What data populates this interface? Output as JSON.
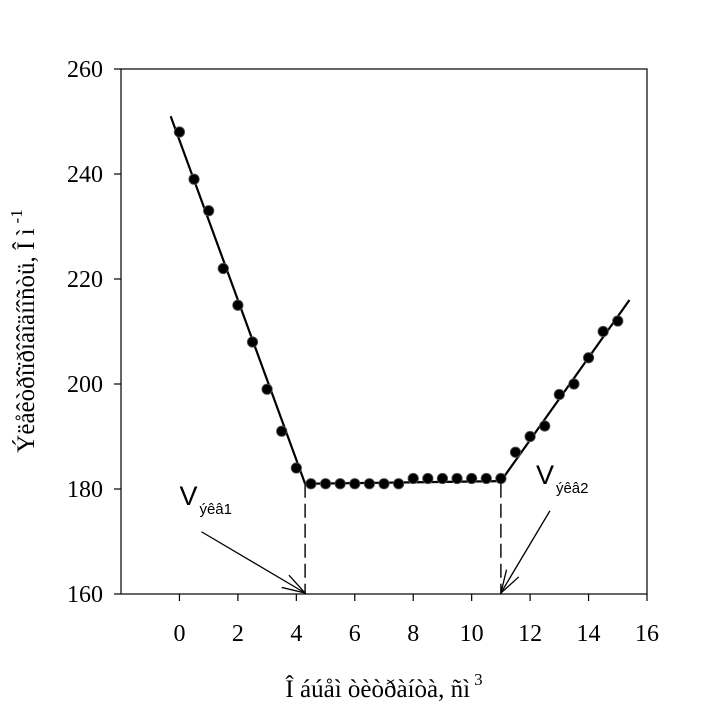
{
  "chart_data": {
    "type": "scatter",
    "title": "",
    "xlabel": "Î áúåì  òèòðàíòà, ñì",
    "xlabel_sup": "3",
    "ylabel": "Ýëåêòðîïðîâîäíîñòü, Î ì",
    "ylabel_sup": "-1",
    "xlim": [
      -2,
      16
    ],
    "ylim": [
      160,
      260
    ],
    "xticks": [
      0,
      2,
      4,
      6,
      8,
      10,
      12,
      14,
      16
    ],
    "yticks": [
      160,
      180,
      200,
      220,
      240,
      260
    ],
    "grid": false,
    "series": [
      {
        "x": [
          0,
          0.5,
          1,
          1.5,
          2,
          2.5,
          3,
          3.5,
          4,
          4.5,
          5,
          5.5,
          6,
          6.5,
          7,
          7.5,
          8,
          8.5,
          9,
          9.5,
          10,
          10.5,
          11,
          11.5,
          12,
          12.5,
          13,
          13.5,
          14,
          14.5,
          15
        ],
        "y": [
          248,
          239,
          233,
          222,
          215,
          208,
          199,
          191,
          184,
          181,
          181,
          181,
          181,
          181,
          181,
          181,
          182,
          182,
          182,
          182,
          182,
          182,
          182,
          187,
          190,
          192,
          198,
          200,
          205,
          210,
          212
        ]
      }
    ],
    "fit_lines": [
      {
        "x": [
          -0.3,
          4.3
        ],
        "y": [
          251,
          181
        ]
      },
      {
        "x": [
          4.3,
          11.0
        ],
        "y": [
          181,
          181.5
        ]
      },
      {
        "x": [
          11.0,
          15.4
        ],
        "y": [
          181.5,
          216
        ]
      }
    ],
    "annotations": [
      {
        "label": "V",
        "subscript": "ýêâ1",
        "x": 4.3,
        "text_x": 0.0,
        "text_y": 177
      },
      {
        "label": "V",
        "subscript": "ýêâ2",
        "x": 11.0,
        "text_x": 12.2,
        "text_y": 181
      }
    ]
  }
}
